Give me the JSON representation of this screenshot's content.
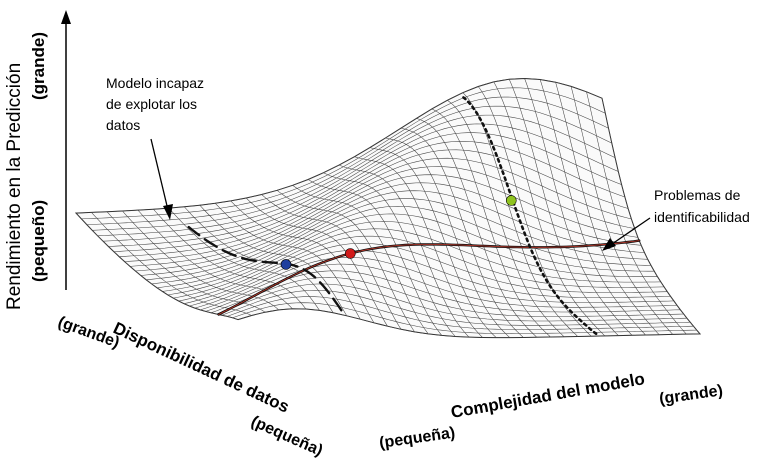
{
  "y_axis": {
    "label": "Rendimiento en la Predicción",
    "high": "(grande)",
    "low": "(pequeño)"
  },
  "data_axis": {
    "label": "Disponibilidad de datos",
    "high": "(grande)",
    "low": "(pequeña)"
  },
  "complexity_axis": {
    "label": "Complejidad del modelo",
    "low": "(pequeña)",
    "high": "(grande)"
  },
  "annotations": {
    "underfit": [
      "Modelo incapaz",
      "de explotar los",
      "datos"
    ],
    "identifiability": [
      "Problemas de",
      "identificabilidad"
    ]
  },
  "markers": {
    "blue": "#1f3f9e",
    "red": "#d11a1a",
    "green": "#8fc31f"
  },
  "line_color": "#000000",
  "curve_color": "#c0392b"
}
